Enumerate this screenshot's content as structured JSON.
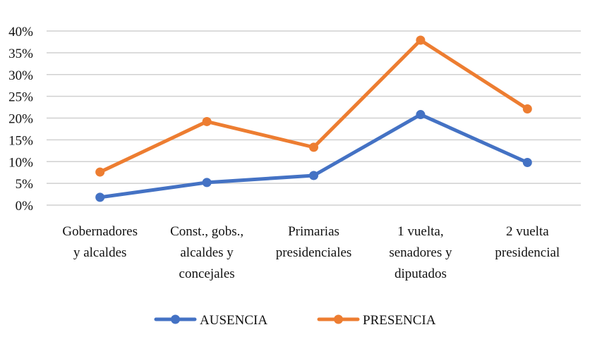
{
  "chart_data": {
    "type": "line",
    "title": "",
    "xlabel": "",
    "ylabel": "",
    "categories": [
      [
        "Gobernadores",
        "y alcaldes"
      ],
      [
        "Const., gobs.,",
        "alcaldes y",
        "concejales"
      ],
      [
        "Primarias",
        "presidenciales"
      ],
      [
        "1 vuelta,",
        "senadores y",
        "diputados"
      ],
      [
        "2 vuelta",
        "presidencial"
      ]
    ],
    "y_ticks": [
      "0%",
      "5%",
      "10%",
      "15%",
      "20%",
      "25%",
      "30%",
      "35%",
      "40%"
    ],
    "ylim": [
      0,
      40
    ],
    "grid": true,
    "legend_position": "bottom",
    "series": [
      {
        "name": "AUSENCIA",
        "color": "#4472C4",
        "values": [
          1.8,
          5.2,
          6.8,
          20.8,
          9.8
        ]
      },
      {
        "name": "PRESENCIA",
        "color": "#ED7D31",
        "values": [
          7.6,
          19.2,
          13.3,
          37.9,
          22.1
        ]
      }
    ]
  }
}
